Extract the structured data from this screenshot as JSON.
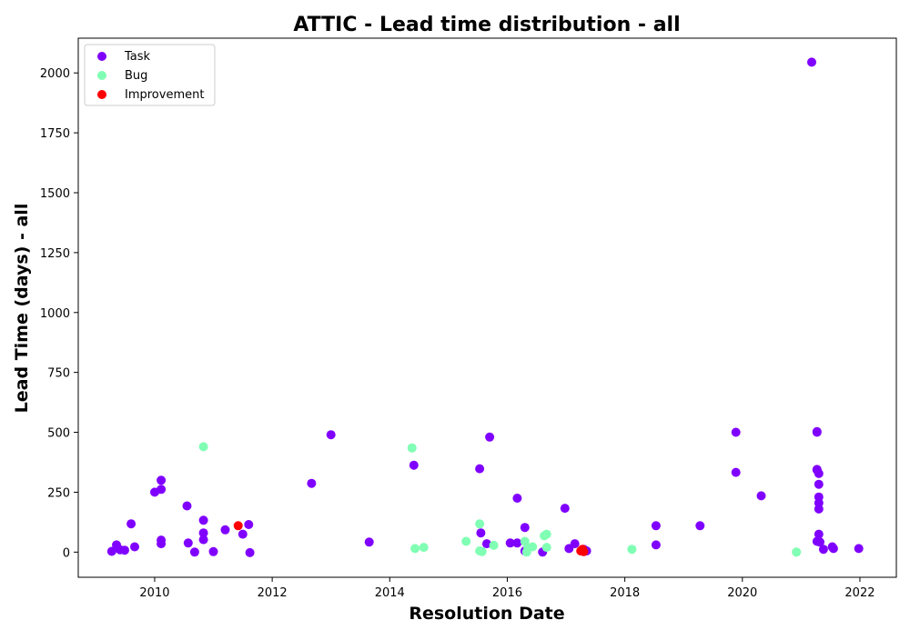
{
  "chart_data": {
    "type": "scatter",
    "title": "ATTIC - Lead time distribution - all",
    "xlabel": "Resolution Date",
    "ylabel": "Lead Time (days) - all",
    "xlim": [
      2008.7,
      2022.62
    ],
    "ylim": [
      -105,
      2145
    ],
    "x_ticks": [
      2010,
      2012,
      2014,
      2016,
      2018,
      2020,
      2022
    ],
    "y_ticks": [
      0,
      250,
      500,
      750,
      1000,
      1250,
      1500,
      1750,
      2000
    ],
    "grid": false,
    "legend_position": "top-left",
    "series": [
      {
        "name": "Task",
        "color": "#8000ff",
        "points": [
          [
            2009.27,
            3
          ],
          [
            2009.35,
            30
          ],
          [
            2009.41,
            10
          ],
          [
            2009.49,
            8
          ],
          [
            2009.6,
            118
          ],
          [
            2009.66,
            22
          ],
          [
            2010.0,
            250
          ],
          [
            2010.11,
            300
          ],
          [
            2010.11,
            262
          ],
          [
            2010.11,
            50
          ],
          [
            2010.11,
            35
          ],
          [
            2010.55,
            193
          ],
          [
            2010.57,
            38
          ],
          [
            2010.68,
            0
          ],
          [
            2010.83,
            133
          ],
          [
            2010.83,
            80
          ],
          [
            2010.83,
            52
          ],
          [
            2011.0,
            2
          ],
          [
            2011.2,
            93
          ],
          [
            2011.5,
            75
          ],
          [
            2011.6,
            115
          ],
          [
            2011.62,
            -2
          ],
          [
            2012.67,
            287
          ],
          [
            2013.0,
            490
          ],
          [
            2013.65,
            42
          ],
          [
            2014.41,
            363
          ],
          [
            2015.53,
            348
          ],
          [
            2015.55,
            80
          ],
          [
            2015.65,
            35
          ],
          [
            2015.7,
            480
          ],
          [
            2016.05,
            38
          ],
          [
            2016.17,
            225
          ],
          [
            2016.17,
            38
          ],
          [
            2016.3,
            103
          ],
          [
            2016.3,
            5
          ],
          [
            2016.6,
            0
          ],
          [
            2016.98,
            183
          ],
          [
            2017.05,
            15
          ],
          [
            2017.15,
            35
          ],
          [
            2017.3,
            12
          ],
          [
            2017.35,
            5
          ],
          [
            2018.53,
            110
          ],
          [
            2018.53,
            30
          ],
          [
            2019.28,
            110
          ],
          [
            2019.89,
            500
          ],
          [
            2019.89,
            333
          ],
          [
            2020.32,
            235
          ],
          [
            2021.18,
            2045
          ],
          [
            2021.27,
            503
          ],
          [
            2021.27,
            500
          ],
          [
            2021.27,
            345
          ],
          [
            2021.27,
            343
          ],
          [
            2021.3,
            328
          ],
          [
            2021.3,
            283
          ],
          [
            2021.3,
            230
          ],
          [
            2021.3,
            205
          ],
          [
            2021.3,
            180
          ],
          [
            2021.3,
            75
          ],
          [
            2021.27,
            45
          ],
          [
            2021.32,
            42
          ],
          [
            2021.38,
            12
          ],
          [
            2021.53,
            22
          ],
          [
            2021.55,
            15
          ],
          [
            2021.98,
            15
          ]
        ]
      },
      {
        "name": "Bug",
        "color": "#80ffb4",
        "points": [
          [
            2010.83,
            440
          ],
          [
            2014.38,
            435
          ],
          [
            2014.43,
            15
          ],
          [
            2014.58,
            20
          ],
          [
            2015.3,
            45
          ],
          [
            2015.53,
            118
          ],
          [
            2015.53,
            5
          ],
          [
            2015.57,
            2
          ],
          [
            2015.77,
            28
          ],
          [
            2016.3,
            45
          ],
          [
            2016.33,
            0
          ],
          [
            2016.35,
            18
          ],
          [
            2016.43,
            22
          ],
          [
            2016.63,
            68
          ],
          [
            2016.67,
            75
          ],
          [
            2016.67,
            20
          ],
          [
            2018.12,
            12
          ],
          [
            2020.92,
            0
          ]
        ]
      },
      {
        "name": "Improvement",
        "color": "#ff0000",
        "points": [
          [
            2011.42,
            110
          ],
          [
            2017.25,
            5
          ],
          [
            2017.28,
            12
          ],
          [
            2017.3,
            2
          ]
        ]
      }
    ]
  }
}
